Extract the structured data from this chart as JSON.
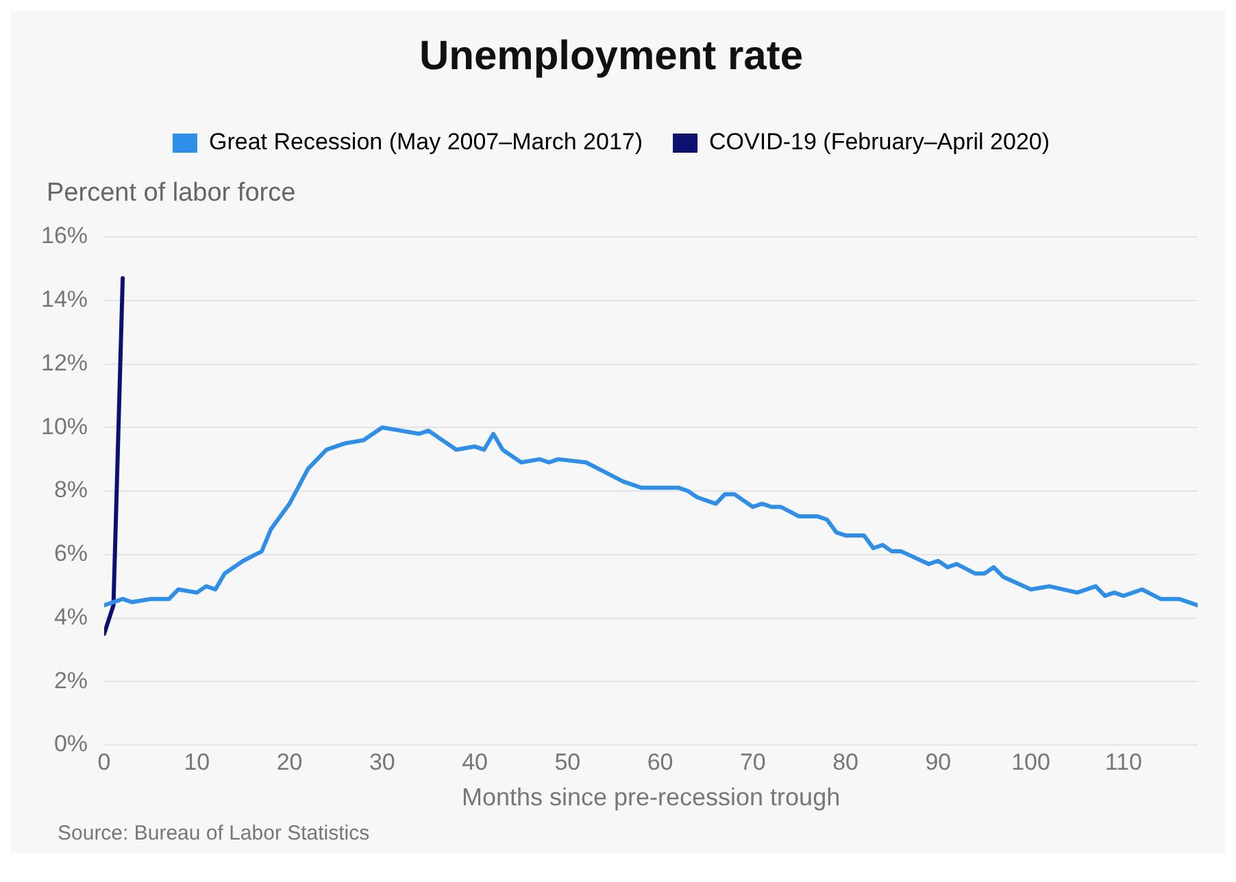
{
  "chart_data": {
    "type": "line",
    "title": "Unemployment rate",
    "ylabel": "Percent of labor force",
    "xlabel": "Months since pre-recession trough",
    "series": [
      {
        "name": "Great Recession (May 2007–March 2017)",
        "color": "#2f8fe8",
        "x": [
          0,
          2,
          3,
          5,
          7,
          8,
          10,
          11,
          12,
          13,
          15,
          17,
          18,
          20,
          22,
          24,
          26,
          28,
          30,
          32,
          34,
          35,
          38,
          40,
          41,
          42,
          43,
          45,
          47,
          48,
          49,
          52,
          54,
          56,
          58,
          62,
          63,
          64,
          66,
          67,
          68,
          70,
          71,
          72,
          73,
          75,
          77,
          78,
          79,
          80,
          82,
          83,
          84,
          85,
          86,
          89,
          90,
          91,
          92,
          94,
          95,
          96,
          97,
          100,
          102,
          105,
          107,
          108,
          109,
          110,
          112,
          114,
          116,
          118
        ],
        "values": [
          4.4,
          4.6,
          4.5,
          4.6,
          4.6,
          4.9,
          4.8,
          5.0,
          4.9,
          5.4,
          5.8,
          6.1,
          6.8,
          7.6,
          8.7,
          9.3,
          9.5,
          9.6,
          10.0,
          9.9,
          9.8,
          9.9,
          9.3,
          9.4,
          9.3,
          9.8,
          9.3,
          8.9,
          9.0,
          8.9,
          9.0,
          8.9,
          8.6,
          8.3,
          8.1,
          8.1,
          8.0,
          7.8,
          7.6,
          7.9,
          7.9,
          7.5,
          7.6,
          7.5,
          7.5,
          7.2,
          7.2,
          7.1,
          6.7,
          6.6,
          6.6,
          6.2,
          6.3,
          6.1,
          6.1,
          5.7,
          5.8,
          5.6,
          5.7,
          5.4,
          5.4,
          5.6,
          5.3,
          4.9,
          5.0,
          4.8,
          5.0,
          4.7,
          4.8,
          4.7,
          4.9,
          4.6,
          4.6,
          4.4
        ]
      },
      {
        "name": "COVID-19 (February–April 2020)",
        "color": "#0c1170",
        "x": [
          0,
          1,
          2
        ],
        "values": [
          3.5,
          4.4,
          14.7
        ]
      }
    ],
    "xlim": [
      0,
      118
    ],
    "xticks": [
      0,
      10,
      20,
      30,
      40,
      50,
      60,
      70,
      80,
      90,
      100,
      110
    ],
    "ylim": [
      0,
      16
    ],
    "yticks": [
      {
        "value": 0,
        "label": "0%"
      },
      {
        "value": 2,
        "label": "2%"
      },
      {
        "value": 4,
        "label": "4%"
      },
      {
        "value": 6,
        "label": "6%"
      },
      {
        "value": 8,
        "label": "8%"
      },
      {
        "value": 10,
        "label": "10%"
      },
      {
        "value": 12,
        "label": "12%"
      },
      {
        "value": 14,
        "label": "14%"
      },
      {
        "value": 16,
        "label": "16%"
      }
    ],
    "grid": "y",
    "legend": "top",
    "marker": "none",
    "line_style": "solid",
    "annotations": [
      "Source: Bureau of Labor Statistics"
    ]
  }
}
